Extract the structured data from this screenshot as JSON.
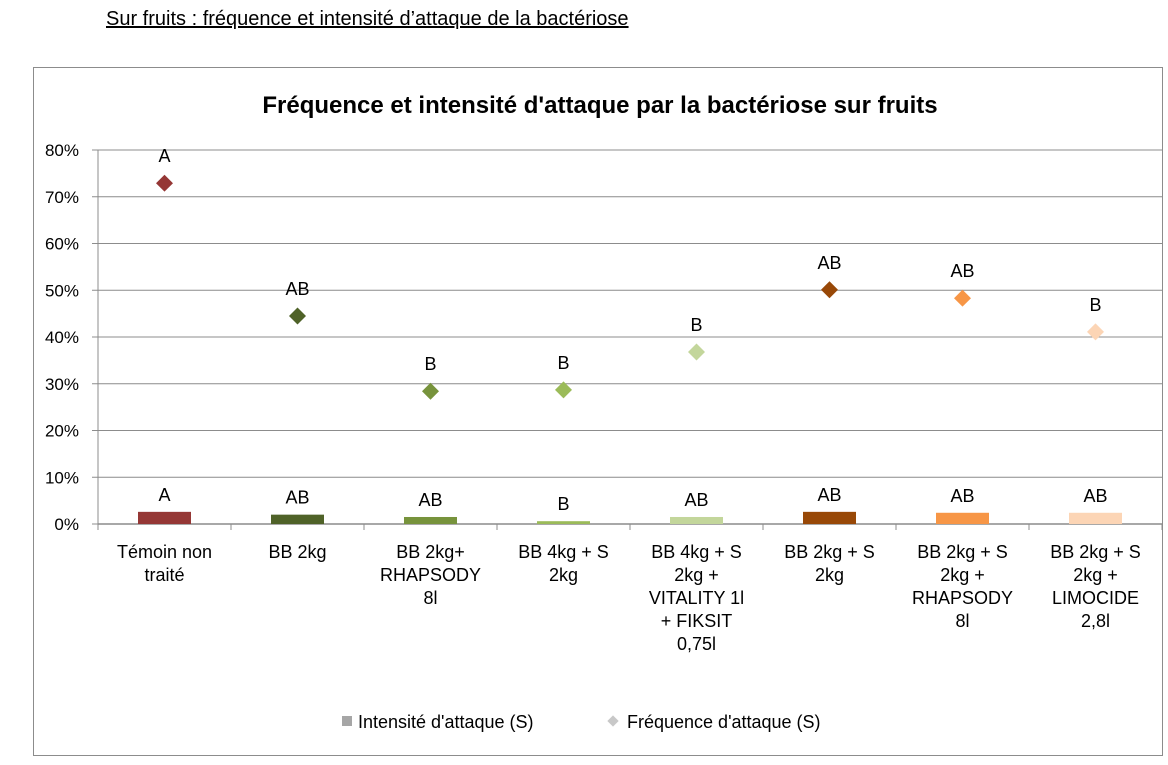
{
  "heading": "Sur fruits : fréquence et intensité d’attaque de la bactériose",
  "chart_data": {
    "type": "bar+scatter",
    "title": "Fréquence et intensité d'attaque par la bactériose sur fruits",
    "xlabel": "",
    "ylabel": "",
    "ylim": [
      0,
      80
    ],
    "yticks": [
      "0%",
      "10%",
      "20%",
      "30%",
      "40%",
      "50%",
      "60%",
      "70%",
      "80%"
    ],
    "grid": true,
    "legend_position": "bottom",
    "categories": [
      [
        "Témoin non",
        "traité"
      ],
      [
        "BB 2kg"
      ],
      [
        "BB 2kg+",
        "RHAPSODY",
        "8l"
      ],
      [
        "BB 4kg + S",
        "2kg"
      ],
      [
        "BB 4kg + S",
        "2kg +",
        "VITALITY 1l",
        "+ FIKSIT",
        "0,75l"
      ],
      [
        "BB 2kg + S",
        "2kg"
      ],
      [
        "BB 2kg + S",
        "2kg +",
        "RHAPSODY",
        "8l"
      ],
      [
        "BB 2kg + S",
        "2kg +",
        "LIMOCIDE",
        "2,8l"
      ]
    ],
    "colors": [
      "#953735",
      "#4f6228",
      "#77933c",
      "#9bbb59",
      "#c3d69b",
      "#984807",
      "#f79646",
      "#fcd5b5"
    ],
    "series": [
      {
        "name": "Intensité d'attaque (S)",
        "kind": "bar",
        "values": [
          2.6,
          2.0,
          1.5,
          0.6,
          1.5,
          2.6,
          2.4,
          2.4
        ],
        "labels": [
          "A",
          "AB",
          "AB",
          "B",
          "AB",
          "AB",
          "AB",
          "AB"
        ]
      },
      {
        "name": "Fréquence d'attaque (S)",
        "kind": "scatter",
        "values": [
          72.9,
          44.5,
          28.4,
          28.7,
          36.8,
          50.1,
          48.3,
          41.1
        ],
        "labels": [
          "A",
          "AB",
          "B",
          "B",
          "B",
          "AB",
          "AB",
          "B"
        ]
      }
    ]
  }
}
